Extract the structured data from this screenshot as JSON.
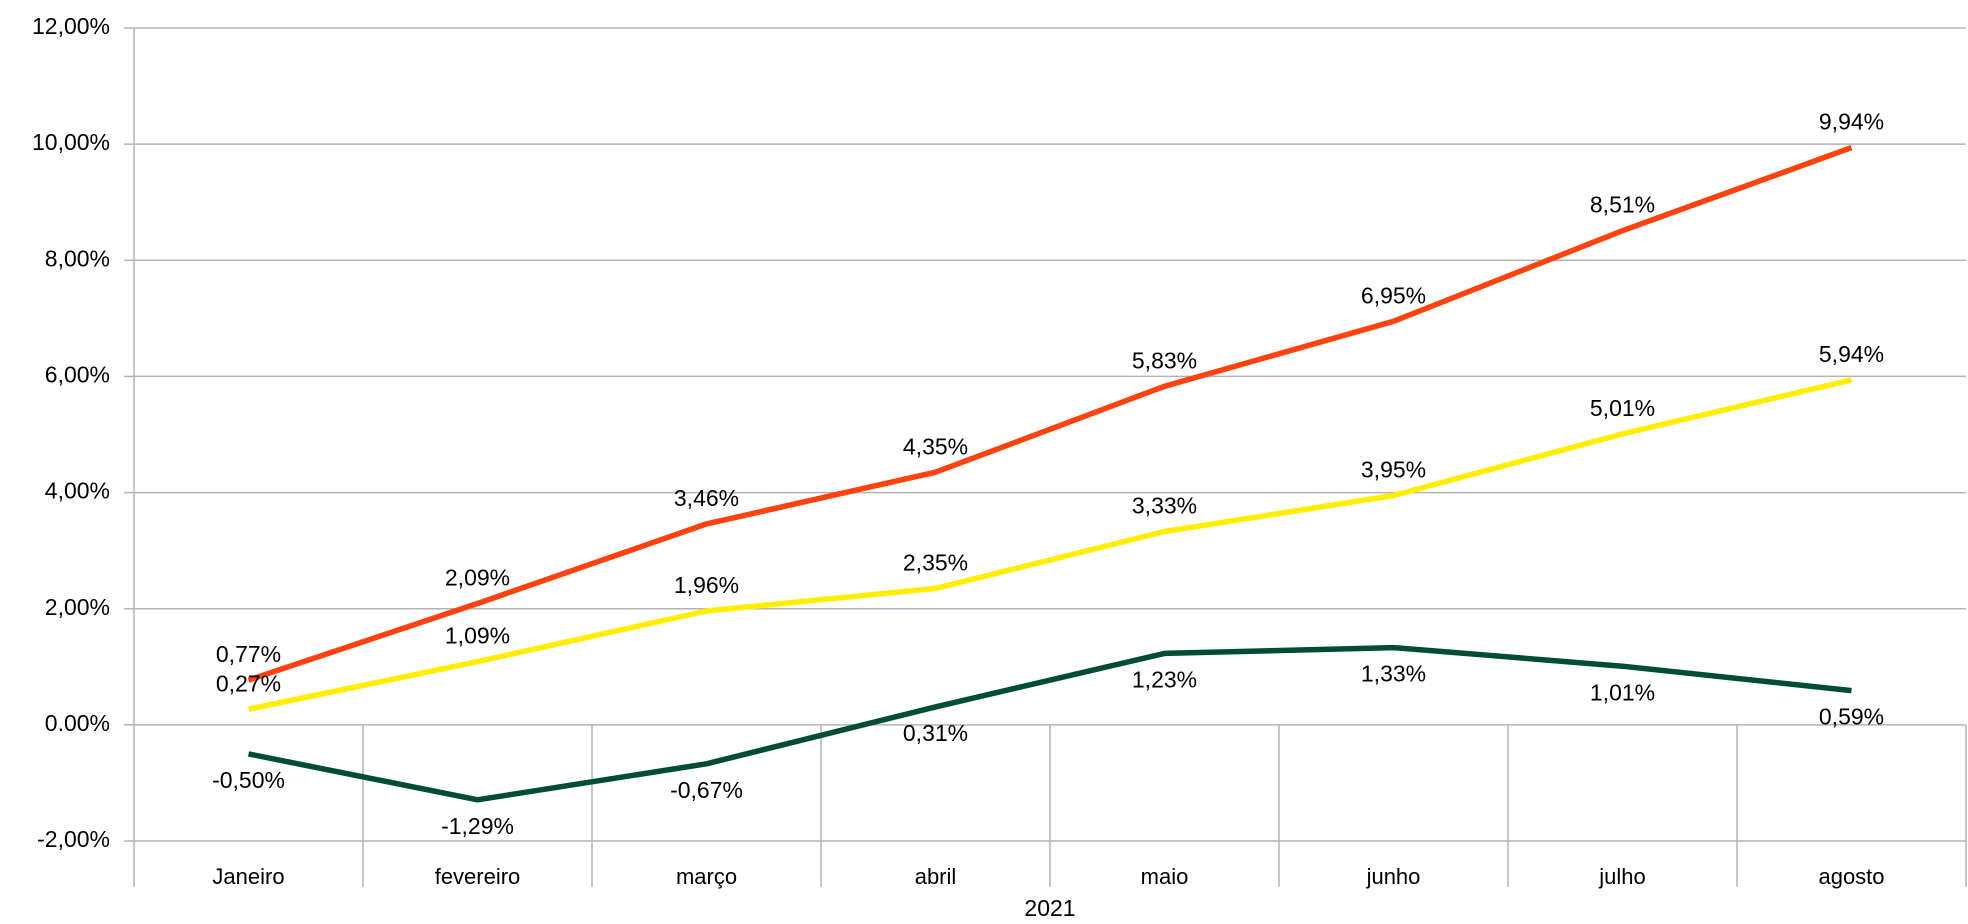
{
  "chart_data": {
    "type": "line",
    "x_label": "2021",
    "categories": [
      "Janeiro",
      "fevereiro",
      "março",
      "abril",
      "maio",
      "junho",
      "julho",
      "agosto"
    ],
    "series": [
      {
        "color": "#ff420e",
        "values": [
          0.77,
          2.09,
          3.46,
          4.35,
          5.83,
          6.95,
          8.51,
          9.94
        ],
        "value_labels": [
          "0,77%",
          "2,09%",
          "3,46%",
          "4,35%",
          "5,83%",
          "6,95%",
          "8,51%",
          "9,94%"
        ]
      },
      {
        "color": "#ffee00",
        "values": [
          0.27,
          1.09,
          1.96,
          2.35,
          3.33,
          3.95,
          5.01,
          5.94
        ],
        "value_labels": [
          "0,27%",
          "1,09%",
          "1,96%",
          "2,35%",
          "3,33%",
          "3,95%",
          "5,01%",
          "5,94%"
        ]
      },
      {
        "color": "#004d33",
        "values": [
          -0.5,
          -1.29,
          -0.67,
          0.31,
          1.23,
          1.33,
          1.01,
          0.59
        ],
        "value_labels": [
          "-0,50%",
          "-1,29%",
          "-0,67%",
          "0,31%",
          "1,23%",
          "1,33%",
          "1,01%",
          "0,59%"
        ]
      }
    ],
    "ylim": [
      -2,
      12
    ],
    "yticks": [
      {
        "value": -2,
        "label": "-2,00%"
      },
      {
        "value": 0,
        "label": "0.00%"
      },
      {
        "value": 2,
        "label": "2,00%"
      },
      {
        "value": 4,
        "label": "4,00%"
      },
      {
        "value": 6,
        "label": "6,00%"
      },
      {
        "value": 8,
        "label": "8,00%"
      },
      {
        "value": 10,
        "label": "10,00%"
      },
      {
        "value": 12,
        "label": "12,00%"
      }
    ],
    "grid": true
  }
}
